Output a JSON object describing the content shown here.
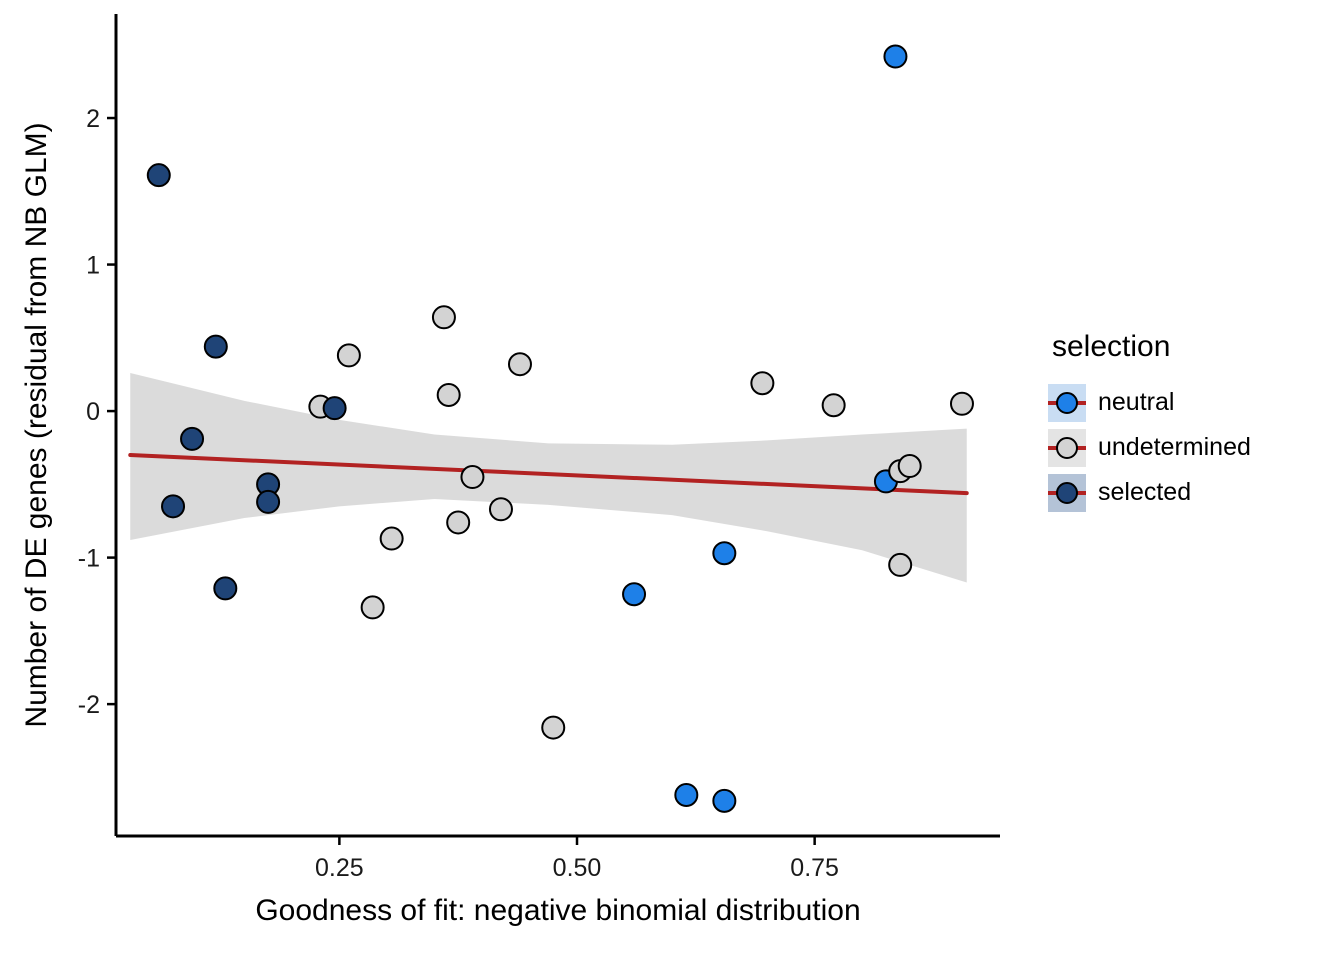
{
  "chart_data": {
    "type": "scatter",
    "title": "",
    "xlabel": "Goodness of fit: negative binomial distribution",
    "ylabel": "Number of DE genes (residual from NB GLM)",
    "xlim": [
      0.015,
      0.945
    ],
    "ylim": [
      -2.9,
      2.71
    ],
    "grid": false,
    "x_ticks": [
      0.25,
      0.5,
      0.75
    ],
    "x_tick_labels": [
      "0.25",
      "0.50",
      "0.75"
    ],
    "y_ticks": [
      -2,
      -1,
      0,
      1,
      2
    ],
    "y_tick_labels": [
      "-2",
      "-1",
      "0",
      "1",
      "2"
    ],
    "legend": {
      "title": "selection",
      "position": "right",
      "entries": [
        {
          "id": "neutral",
          "label": "neutral",
          "point_color": "#1E80E8",
          "key_bg": "#C9DDF3"
        },
        {
          "id": "undetermined",
          "label": "undetermined",
          "point_color": "#D3D3D3",
          "key_bg": "#E4E4E4"
        },
        {
          "id": "selected",
          "label": "selected",
          "point_color": "#1F4477",
          "key_bg": "#B4C3D7"
        }
      ]
    },
    "colors": {
      "trend_line": "#B22222",
      "band_fill": "#999999",
      "band_opacity": 0.35,
      "point_stroke": "#000000",
      "axis": "#000000",
      "tick_label": "#1a1a1a"
    },
    "series": [
      {
        "name": "neutral",
        "points": [
          [
            0.835,
            2.42
          ],
          [
            0.825,
            -0.48
          ],
          [
            0.655,
            -0.97
          ],
          [
            0.56,
            -1.25
          ],
          [
            0.615,
            -2.62
          ],
          [
            0.655,
            -2.66
          ]
        ]
      },
      {
        "name": "undetermined",
        "points": [
          [
            0.23,
            0.03
          ],
          [
            0.26,
            0.38
          ],
          [
            0.36,
            0.64
          ],
          [
            0.365,
            0.11
          ],
          [
            0.44,
            0.32
          ],
          [
            0.39,
            -0.45
          ],
          [
            0.42,
            -0.67
          ],
          [
            0.375,
            -0.76
          ],
          [
            0.305,
            -0.87
          ],
          [
            0.285,
            -1.34
          ],
          [
            0.475,
            -2.16
          ],
          [
            0.695,
            0.19
          ],
          [
            0.77,
            0.04
          ],
          [
            0.84,
            -0.41
          ],
          [
            0.85,
            -0.375
          ],
          [
            0.84,
            -1.05
          ],
          [
            0.905,
            0.05
          ]
        ]
      },
      {
        "name": "selected",
        "points": [
          [
            0.06,
            1.61
          ],
          [
            0.12,
            0.44
          ],
          [
            0.095,
            -0.19
          ],
          [
            0.075,
            -0.65
          ],
          [
            0.175,
            -0.5
          ],
          [
            0.175,
            -0.62
          ],
          [
            0.13,
            -1.21
          ],
          [
            0.245,
            0.02
          ]
        ]
      }
    ],
    "trend": {
      "x": [
        0.03,
        0.91
      ],
      "y": [
        -0.3,
        -0.56
      ]
    },
    "band": {
      "x": [
        0.03,
        0.15,
        0.25,
        0.35,
        0.47,
        0.6,
        0.7,
        0.8,
        0.91
      ],
      "upper": [
        0.26,
        0.07,
        -0.06,
        -0.16,
        -0.22,
        -0.23,
        -0.2,
        -0.16,
        -0.12
      ],
      "lower": [
        -0.88,
        -0.73,
        -0.65,
        -0.6,
        -0.64,
        -0.71,
        -0.82,
        -0.95,
        -1.17
      ]
    }
  }
}
